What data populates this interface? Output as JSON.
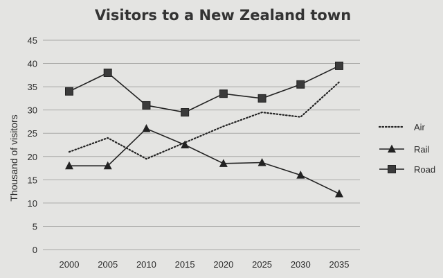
{
  "chart_data": {
    "type": "line",
    "title": "Visitors to a New Zealand town",
    "ylabel": "Thousand of visitors",
    "xlabel": "",
    "categories": [
      "2000",
      "2005",
      "2010",
      "2015",
      "2020",
      "2025",
      "2030",
      "2035"
    ],
    "ylim": [
      0,
      45
    ],
    "yticks": [
      0,
      5,
      10,
      15,
      20,
      25,
      30,
      35,
      40,
      45
    ],
    "grid": true,
    "legend_position": "right",
    "series": [
      {
        "name": "Air",
        "style": "dotted",
        "marker": "none",
        "color": "#222222",
        "values": [
          21,
          24,
          19.5,
          23,
          26.5,
          29.5,
          28.5,
          36
        ]
      },
      {
        "name": "Rail",
        "style": "solid",
        "marker": "triangle",
        "color": "#222222",
        "values": [
          18,
          18,
          26,
          22.5,
          18.5,
          18.7,
          16,
          12
        ]
      },
      {
        "name": "Road",
        "style": "solid",
        "marker": "square",
        "color": "#222222",
        "values": [
          34,
          38,
          31,
          29.5,
          33.5,
          32.5,
          35.5,
          39.5
        ]
      }
    ]
  }
}
